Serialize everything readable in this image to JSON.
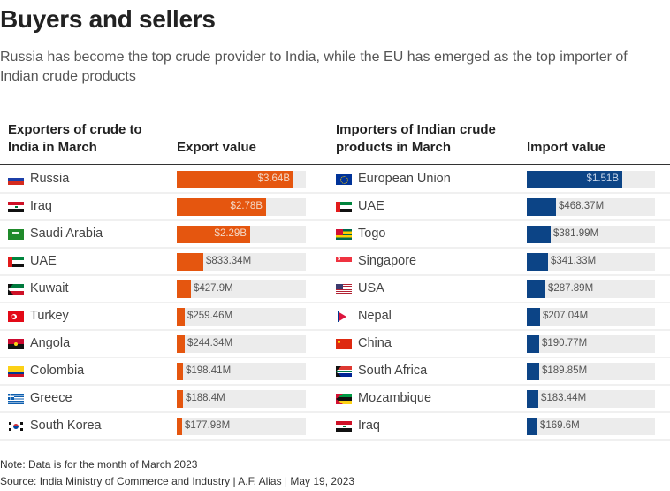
{
  "header": {
    "title": "Buyers and sellers",
    "subtitle": "Russia has become the top crude provider to India, while the EU has emerged as the top importer of Indian crude products"
  },
  "footer": {
    "note": "Note: Data is for the month of March 2023",
    "source": "Source: India Ministry of Commerce and Industry | A.F. Alias | May 19, 2023"
  },
  "colors": {
    "exporters_bar": "#E5560F",
    "importers_bar": "#0C4486",
    "track": "#ECECEC"
  },
  "chart_data": [
    {
      "type": "bar",
      "orientation": "horizontal",
      "title": "Exporters of crude to India in March",
      "column_headers": [
        "Exporters of crude to India in March",
        "Export value"
      ],
      "unit": "USD",
      "xlim": [
        0,
        4030000000.0
      ],
      "categories": [
        "Russia",
        "Iraq",
        "Saudi Arabia",
        "UAE",
        "Kuwait",
        "Turkey",
        "Angola",
        "Colombia",
        "Greece",
        "South Korea"
      ],
      "flags": [
        "flag-russia",
        "flag-iraq",
        "flag-saudi-arabia",
        "flag-uae",
        "flag-kuwait",
        "flag-turkey",
        "flag-angola",
        "flag-colombia",
        "flag-greece",
        "flag-south-korea"
      ],
      "values": [
        3640000000,
        2780000000,
        2290000000,
        833340000,
        427900000,
        259460000,
        244340000,
        198410000,
        188400000,
        177980000
      ],
      "labels": [
        "$3.64B",
        "$2.78B",
        "$2.29B",
        "$833.34M",
        "$427.9M",
        "$259.46M",
        "$244.34M",
        "$198.41M",
        "$188.4M",
        "$177.98M"
      ]
    },
    {
      "type": "bar",
      "orientation": "horizontal",
      "title": "Importers of Indian crude products in March",
      "column_headers": [
        "Importers of Indian crude products in March",
        "Import value"
      ],
      "unit": "USD",
      "xlim": [
        0,
        2030000000.0
      ],
      "categories": [
        "European Union",
        "UAE",
        "Togo",
        "Singapore",
        "USA",
        "Nepal",
        "China",
        "South Africa",
        "Mozambique",
        "Iraq"
      ],
      "flags": [
        "flag-eu",
        "flag-uae",
        "flag-togo",
        "flag-singapore",
        "flag-usa",
        "flag-nepal",
        "flag-china",
        "flag-south-africa",
        "flag-mozambique",
        "flag-iraq"
      ],
      "values": [
        1510000000,
        468370000,
        381990000,
        341330000,
        287890000,
        207040000,
        190770000,
        189850000,
        183440000,
        169600000
      ],
      "labels": [
        "$1.51B",
        "$468.37M",
        "$381.99M",
        "$341.33M",
        "$287.89M",
        "$207.04M",
        "$190.77M",
        "$189.85M",
        "$183.44M",
        "$169.6M"
      ]
    }
  ]
}
